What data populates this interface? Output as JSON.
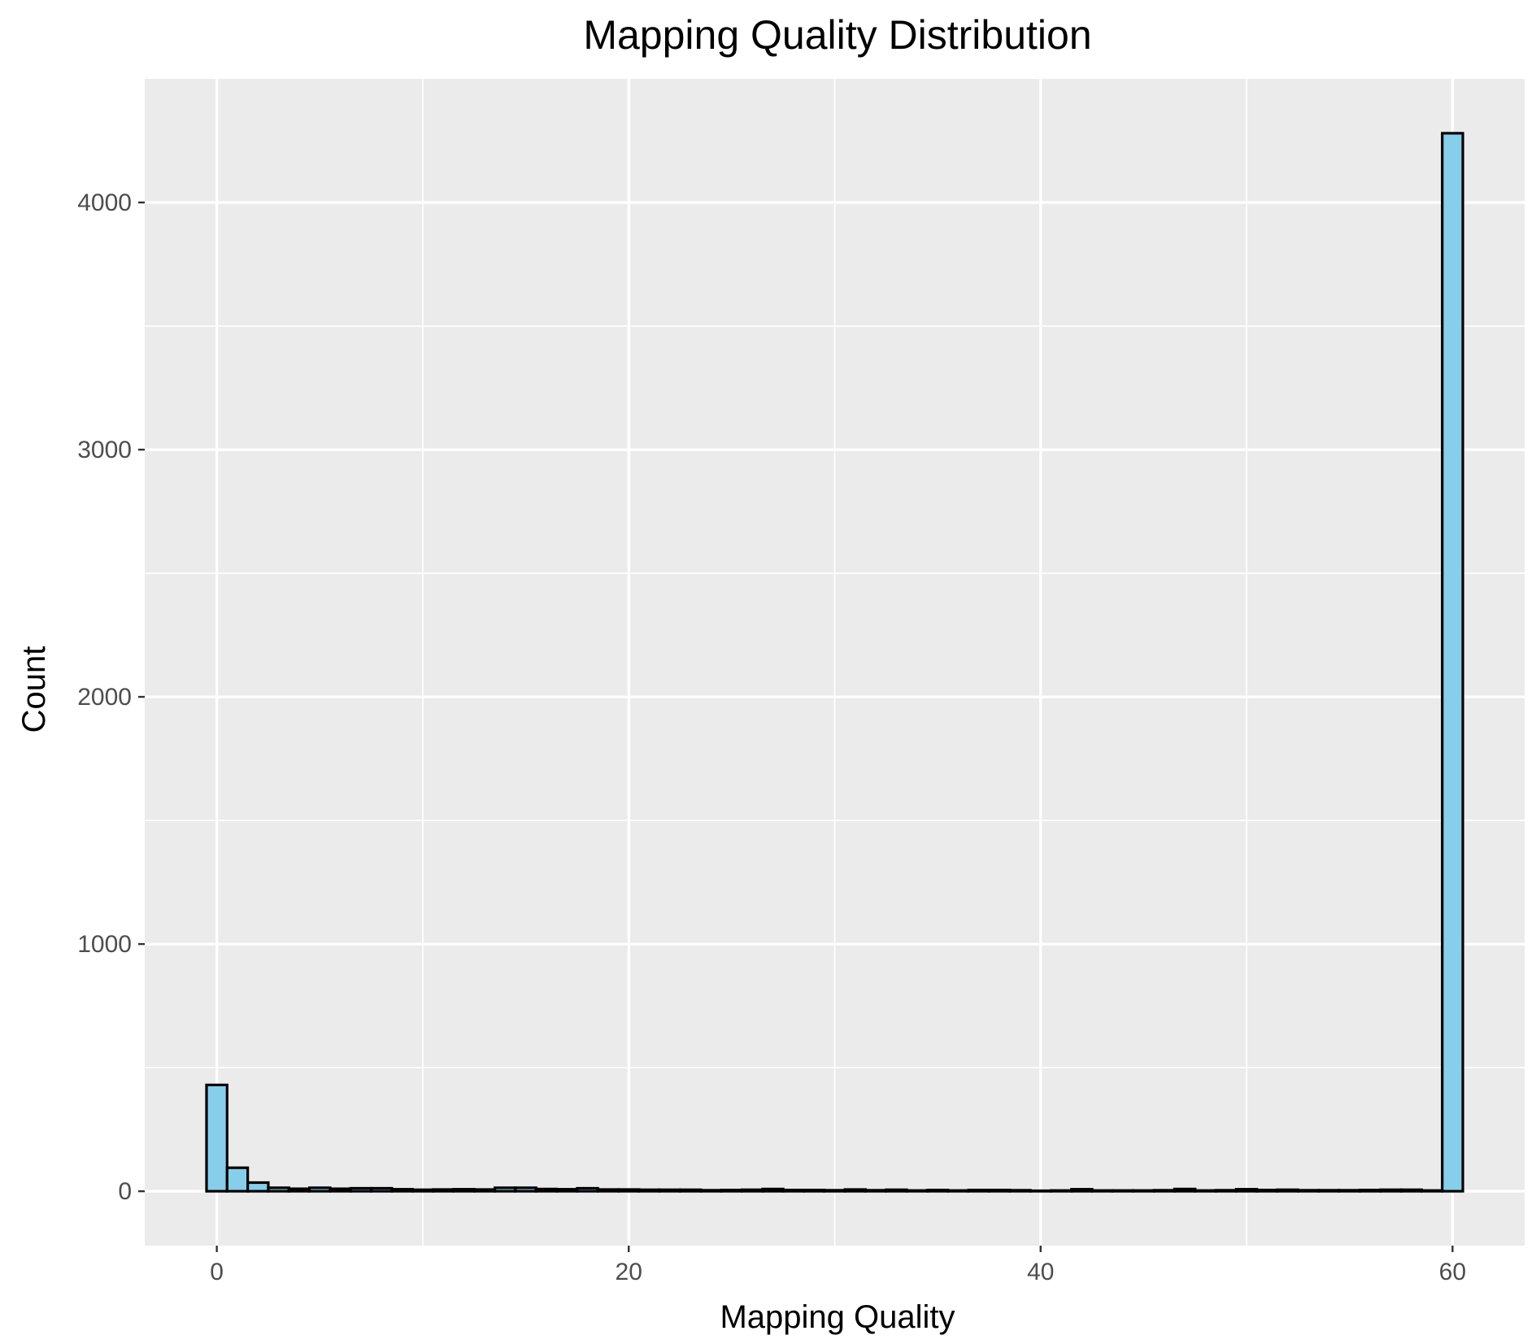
{
  "chart_data": {
    "type": "bar",
    "title": "Mapping Quality Distribution",
    "xlabel": "Mapping Quality",
    "ylabel": "Count",
    "xlim": [
      -3.5,
      63.5
    ],
    "ylim": [
      -220,
      4500
    ],
    "x_ticks": [
      0,
      20,
      40,
      60
    ],
    "y_ticks": [
      0,
      1000,
      2000,
      3000,
      4000
    ],
    "x_minor_ticks": [
      10,
      30,
      50
    ],
    "y_minor_ticks": [
      500,
      1500,
      2500,
      3500
    ],
    "x": [
      0,
      1,
      2,
      3,
      4,
      5,
      6,
      7,
      8,
      9,
      10,
      11,
      12,
      13,
      14,
      15,
      16,
      17,
      18,
      19,
      20,
      21,
      22,
      23,
      24,
      25,
      26,
      27,
      28,
      29,
      30,
      31,
      32,
      33,
      34,
      35,
      36,
      37,
      38,
      39,
      40,
      41,
      42,
      43,
      44,
      45,
      46,
      47,
      48,
      49,
      50,
      51,
      52,
      53,
      54,
      55,
      56,
      57,
      58,
      59,
      60
    ],
    "values": [
      430,
      95,
      35,
      14,
      10,
      14,
      10,
      12,
      12,
      8,
      6,
      7,
      8,
      7,
      14,
      14,
      9,
      8,
      12,
      7,
      7,
      6,
      6,
      6,
      4,
      5,
      6,
      9,
      5,
      5,
      4,
      7,
      4,
      6,
      3,
      5,
      3,
      5,
      5,
      4,
      2,
      3,
      8,
      3,
      3,
      3,
      4,
      9,
      3,
      4,
      8,
      5,
      6,
      4,
      4,
      4,
      5,
      6,
      6,
      3,
      4280
    ],
    "bar_fill": "#87CEEB",
    "bar_stroke": "#000000",
    "panel_background": "#EBEBEB",
    "grid": true,
    "grid_color": "#FFFFFF",
    "legend": "none"
  }
}
